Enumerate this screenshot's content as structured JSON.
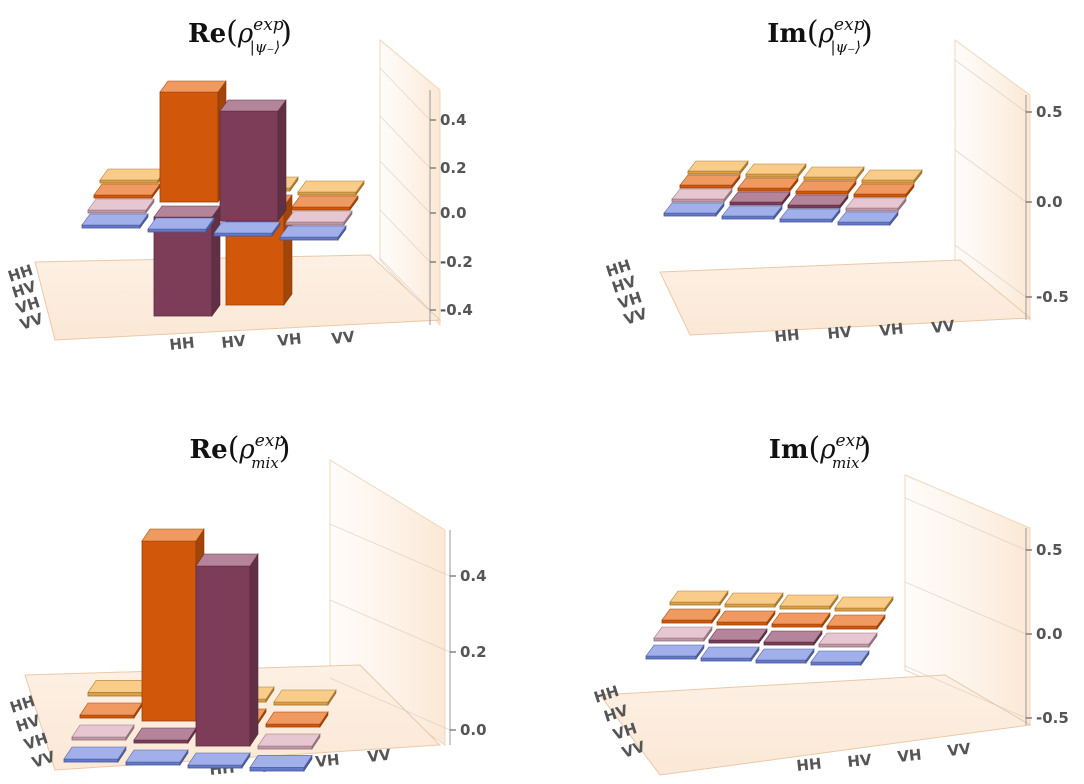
{
  "colors": {
    "orange": "#e8620c",
    "purple": "#8b4463",
    "gold": "#f5b24a",
    "pink": "#d9a9b8",
    "blue": "#6f86e0"
  },
  "chart_data": [
    {
      "type": "bar3d",
      "title": {
        "prefix": "Re",
        "rho": "ρ",
        "sup": "exp",
        "sub": "|ψ₋⟩"
      },
      "zticks": [
        "0.4",
        "0.2",
        "0.0",
        "-0.2",
        "-0.4"
      ],
      "zlim": [
        -0.4,
        0.5
      ],
      "row_labels": [
        "HH",
        "HV",
        "VH",
        "VV"
      ],
      "col_labels": [
        "HH",
        "HV",
        "VH",
        "VV"
      ],
      "matrix": [
        [
          0.01,
          0.0,
          0.0,
          0.0
        ],
        [
          0.0,
          0.5,
          -0.45,
          0.0
        ],
        [
          0.0,
          -0.45,
          0.5,
          0.0
        ],
        [
          0.0,
          0.0,
          0.0,
          0.01
        ]
      ]
    },
    {
      "type": "bar3d",
      "title": {
        "prefix": "Im",
        "rho": "ρ",
        "sup": "exp",
        "sub": "|ψ₋⟩"
      },
      "zticks": [
        "0.5",
        "0.0",
        "-0.5"
      ],
      "zlim": [
        -0.6,
        0.6
      ],
      "row_labels": [
        "HH",
        "HV",
        "VH",
        "VV"
      ],
      "col_labels": [
        "HH",
        "HV",
        "VH",
        "VV"
      ],
      "matrix": [
        [
          0.0,
          0.0,
          0.0,
          0.0
        ],
        [
          0.0,
          0.0,
          0.0,
          0.0
        ],
        [
          0.0,
          0.0,
          0.0,
          0.0
        ],
        [
          0.0,
          0.0,
          0.0,
          0.0
        ]
      ]
    },
    {
      "type": "bar3d",
      "title": {
        "prefix": "Re",
        "rho": "ρ",
        "sup": "exp",
        "sub": "mix"
      },
      "zticks": [
        "0.4",
        "0.2",
        "0.0"
      ],
      "zlim": [
        0.0,
        0.5
      ],
      "row_labels": [
        "HH",
        "HV",
        "VH",
        "VV"
      ],
      "col_labels": [
        "HH",
        "HV",
        "VH",
        "VV"
      ],
      "matrix": [
        [
          0.01,
          0.0,
          0.0,
          0.0
        ],
        [
          0.0,
          0.5,
          0.0,
          0.0
        ],
        [
          0.0,
          0.0,
          0.5,
          0.0
        ],
        [
          0.0,
          0.0,
          0.0,
          0.01
        ]
      ]
    },
    {
      "type": "bar3d",
      "title": {
        "prefix": "Im",
        "rho": "ρ",
        "sup": "exp",
        "sub": "mix"
      },
      "zticks": [
        "0.5",
        "0.0",
        "-0.5"
      ],
      "zlim": [
        -0.6,
        0.6
      ],
      "row_labels": [
        "HH",
        "HV",
        "VH",
        "VV"
      ],
      "col_labels": [
        "HH",
        "HV",
        "VH",
        "VV"
      ],
      "matrix": [
        [
          0.0,
          0.0,
          0.0,
          0.0
        ],
        [
          0.0,
          0.0,
          0.0,
          0.0
        ],
        [
          0.0,
          0.0,
          0.0,
          0.0
        ],
        [
          0.0,
          0.0,
          0.0,
          0.0
        ]
      ]
    }
  ]
}
